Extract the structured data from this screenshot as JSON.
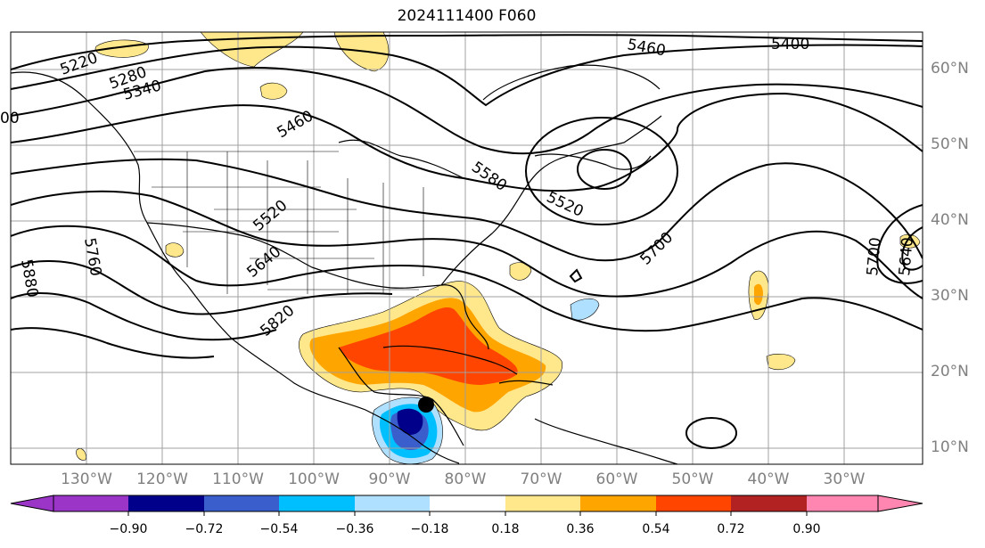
{
  "title": "2024111400 F060",
  "contour_labels": [
    "5220",
    "5280",
    "5340",
    "00",
    "5460",
    "5460",
    "5400",
    "5580",
    "5520",
    "5520",
    "5640",
    "5700",
    "5760",
    "5880",
    "5820",
    "5700",
    "5640"
  ],
  "lon_labels": [
    "130°W",
    "120°W",
    "110°W",
    "100°W",
    "90°W",
    "80°W",
    "70°W",
    "60°W",
    "50°W",
    "40°W",
    "30°W"
  ],
  "lat_labels": [
    "60°N",
    "50°N",
    "40°N",
    "30°N",
    "20°N",
    "10°N"
  ],
  "colorbar": {
    "ticks": [
      "−0.90",
      "−0.72",
      "−0.54",
      "−0.36",
      "−0.18",
      "0.18",
      "0.36",
      "0.54",
      "0.72",
      "0.90"
    ],
    "colors": [
      "#9a35c8",
      "#00008b",
      "#3a5fcd",
      "#00bfff",
      "#b0e0ff",
      "#ffffff",
      "#ffe88c",
      "#ffa500",
      "#ff4500",
      "#b22222",
      "#ff86b0"
    ]
  },
  "colors": {
    "coast": "#000000",
    "grid": "#a0a0a0",
    "axis_label": "#808080"
  }
}
